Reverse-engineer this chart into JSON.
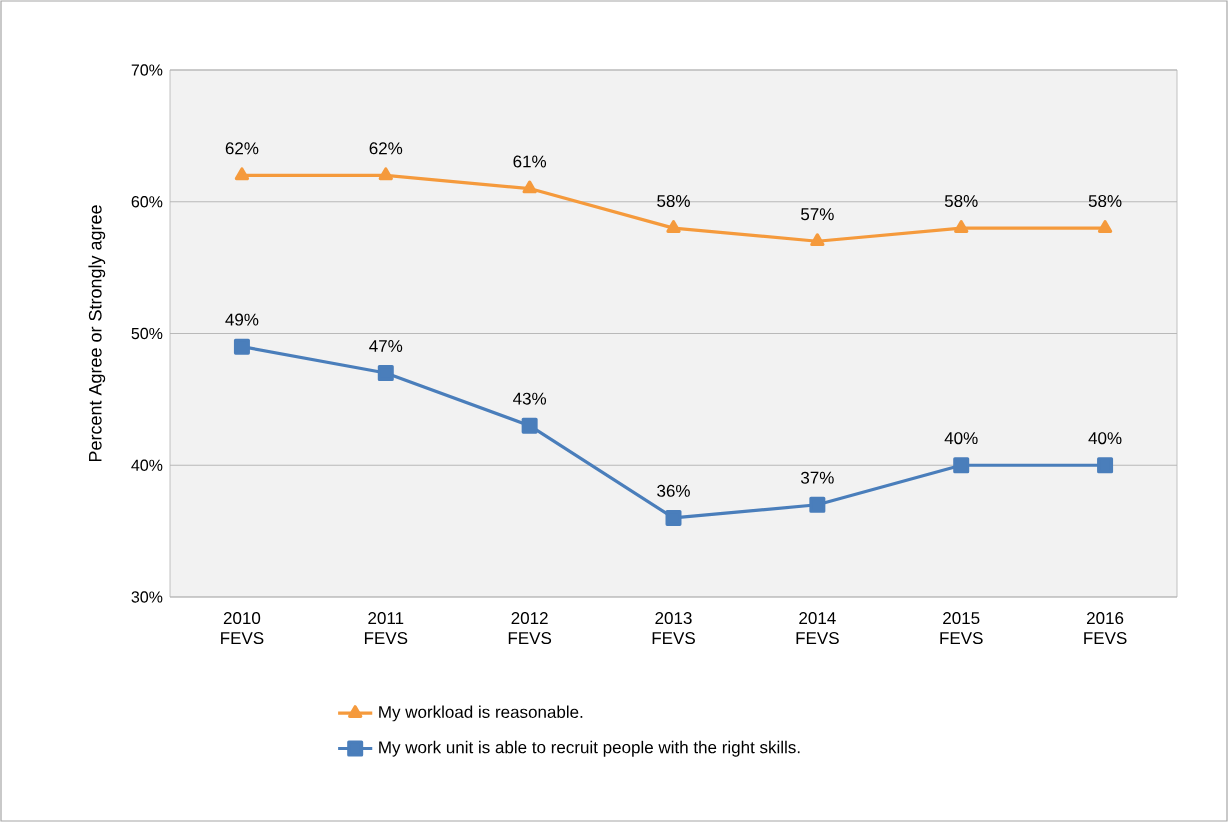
{
  "chart_data": {
    "type": "line",
    "ylabel": "Percent Agree or Strongly agree",
    "categories": [
      "2010 FEVS",
      "2011 FEVS",
      "2012 FEVS",
      "2013 FEVS",
      "2014 FEVS",
      "2015 FEVS",
      "2016 FEVS"
    ],
    "series": [
      {
        "name": "My workload is reasonable.",
        "color": "#f59a3c",
        "marker": "triangle",
        "values": [
          62,
          62,
          61,
          58,
          57,
          58,
          58
        ],
        "value_labels": [
          "62%",
          "62%",
          "61%",
          "58%",
          "57%",
          "58%",
          "58%"
        ]
      },
      {
        "name": "My work unit is able to recruit people with the right skills.",
        "color": "#4a7ebb",
        "marker": "square",
        "values": [
          49,
          47,
          43,
          36,
          37,
          40,
          40
        ],
        "value_labels": [
          "49%",
          "47%",
          "43%",
          "36%",
          "37%",
          "40%",
          "40%"
        ]
      }
    ],
    "ylim": [
      30,
      70
    ],
    "yticks": [
      {
        "value": 30,
        "label": "30%"
      },
      {
        "value": 40,
        "label": "40%"
      },
      {
        "value": 50,
        "label": "50%"
      },
      {
        "value": 60,
        "label": "60%"
      },
      {
        "value": 70,
        "label": "70%"
      }
    ],
    "grid": "y",
    "legend": "bottom"
  }
}
